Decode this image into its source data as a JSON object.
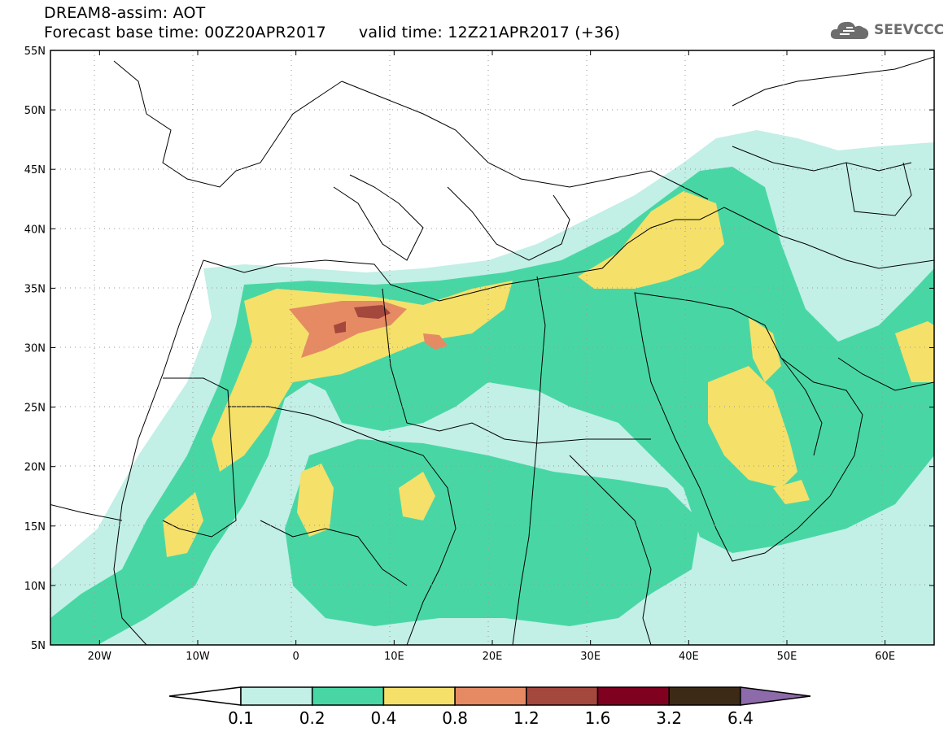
{
  "title": {
    "line1": "DREAM8-assim: AOT",
    "base_time": "Forecast base time: 00Z20APR2017",
    "valid_time": "valid time: 12Z21APR2017 (+36)"
  },
  "logo": {
    "text": "SEEVCCC",
    "icon": "cloud-icon",
    "color": "#6d6d6d"
  },
  "axes": {
    "lat_labels": [
      "55N",
      "50N",
      "45N",
      "40N",
      "35N",
      "30N",
      "25N",
      "20N",
      "15N",
      "10N",
      "5N"
    ],
    "lon_labels": [
      "20W",
      "10W",
      "0",
      "10E",
      "20E",
      "30E",
      "40E",
      "50E",
      "60E"
    ],
    "lat_range": [
      5,
      55
    ],
    "lon_range": [
      -25,
      65
    ]
  },
  "colorbar": {
    "labels": [
      "0.1",
      "0.2",
      "0.4",
      "0.8",
      "1.2",
      "1.6",
      "3.2",
      "6.4"
    ],
    "colors": [
      "#ffffff",
      "#c2efe6",
      "#48d7a4",
      "#f5e06a",
      "#e58a63",
      "#a4473c",
      "#800020",
      "#3d2a16",
      "#8d6aa9"
    ]
  }
}
